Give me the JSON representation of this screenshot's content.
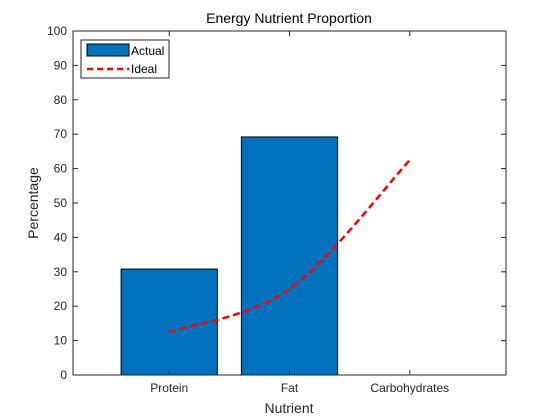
{
  "chart_data": {
    "type": "bar",
    "title": "Energy Nutrient Proportion",
    "xlabel": "Nutrient",
    "ylabel": "Percentage",
    "categories": [
      "Protein",
      "Fat",
      "Carbohydrates"
    ],
    "ylim": [
      0,
      100
    ],
    "yticks": [
      0,
      10,
      20,
      30,
      40,
      50,
      60,
      70,
      80,
      90,
      100
    ],
    "series": [
      {
        "name": "Actual",
        "type": "bar",
        "color": "#0072bd",
        "values": [
          30.8,
          69.2,
          0
        ]
      },
      {
        "name": "Ideal",
        "type": "line",
        "style": "dashed",
        "color": "#ff0000",
        "values": [
          12.5,
          25,
          62.5
        ]
      }
    ],
    "legend": {
      "placement": "top-left",
      "entries": [
        "Actual",
        "Ideal"
      ]
    },
    "grid": false
  }
}
